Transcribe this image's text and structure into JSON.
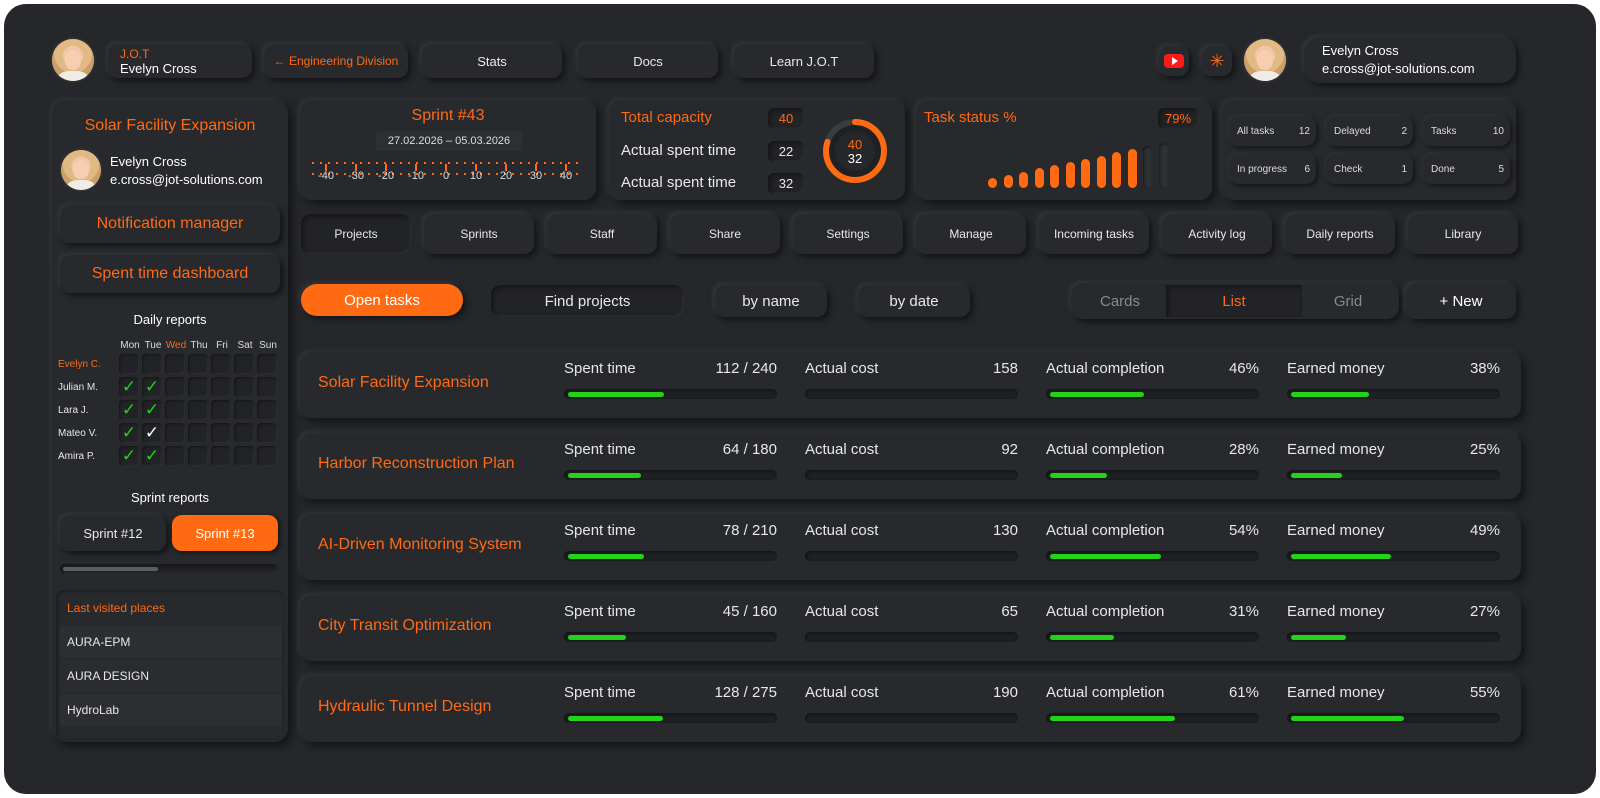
{
  "header": {
    "app_name": "J.O.T",
    "user_name": "Evelyn Cross",
    "back_link": "← Engineering Division",
    "nav": [
      "Stats",
      "Docs",
      "Learn J.O.T"
    ],
    "profile_name": "Evelyn Cross",
    "profile_email": "e.cross@jot-solutions.com",
    "icons": [
      "youtube-icon",
      "sun-icon"
    ]
  },
  "sidebar": {
    "project_title": "Solar Facility Expansion",
    "user_name": "Evelyn Cross",
    "user_email": "e.cross@jot-solutions.com",
    "notification_btn": "Notification manager",
    "dashboard_btn": "Spent time dashboard",
    "daily_reports_title": "Daily reports",
    "days": [
      "Mon",
      "Tue",
      "Wed",
      "Thu",
      "Fri",
      "Sat",
      "Sun"
    ],
    "highlight_day": "Wed",
    "people": [
      "Evelyn C.",
      "Julian M.",
      "Lara J.",
      "Mateo V.",
      "Amira P."
    ],
    "checks": [
      [
        0,
        0,
        0,
        0,
        0,
        0,
        0
      ],
      [
        1,
        1,
        0,
        0,
        0,
        0,
        0
      ],
      [
        1,
        1,
        0,
        0,
        0,
        0,
        0
      ],
      [
        1,
        2,
        0,
        0,
        0,
        0,
        0
      ],
      [
        1,
        1,
        0,
        0,
        0,
        0,
        0
      ]
    ],
    "sprint_reports_title": "Sprint reports",
    "sprint_a": "Sprint #12",
    "sprint_b": "Sprint #13",
    "scroll_progress": 0.45,
    "last_visited_title": "Last visited places",
    "last_visited": [
      "AURA-EPM",
      "AURA DESIGN",
      "HydroLab"
    ]
  },
  "sprint": {
    "title": "Sprint #43",
    "dates": "27.02.2026 – 05.03.2026",
    "scale": [
      "-40",
      "-30",
      "-20",
      "-10",
      "0",
      "10",
      "20",
      "30",
      "40"
    ]
  },
  "capacity": {
    "total_label": "Total capacity",
    "total_value": "40",
    "spent_label_1": "Actual spent time",
    "spent_value_1": "22",
    "spent_label_2": "Actual spent time",
    "spent_value_2": "32",
    "gauge_top": "40",
    "gauge_bottom": "32",
    "gauge_fraction": 0.8
  },
  "task_status": {
    "label": "Task status %",
    "value": "79%",
    "bars_total": 12,
    "bars_active": 10
  },
  "stats": [
    {
      "label": "All tasks",
      "value": "12"
    },
    {
      "label": "Delayed",
      "value": "2"
    },
    {
      "label": "Tasks",
      "value": "10"
    },
    {
      "label": "In progress",
      "value": "6"
    },
    {
      "label": "Check",
      "value": "1"
    },
    {
      "label": "Done",
      "value": "5"
    }
  ],
  "tabs": [
    "Projects",
    "Sprints",
    "Staff",
    "Share",
    "Settings",
    "Manage",
    "Incoming tasks",
    "Activity log",
    "Daily reports",
    "Library"
  ],
  "active_tab": "Projects",
  "toolbar": {
    "open_tasks": "Open tasks",
    "find_projects": "Find projects",
    "by_name": "by name",
    "by_date": "by date",
    "views": [
      "Cards",
      "List",
      "Grid"
    ],
    "active_view": "List",
    "new_btn": "+ New"
  },
  "projects": [
    {
      "name": "Solar Facility Expansion",
      "spent_label": "Spent time",
      "spent": "112 / 240",
      "spent_frac": 0.467,
      "cost_label": "Actual cost",
      "cost": "158",
      "cost_frac": 0.0,
      "completion_label": "Actual completion",
      "completion": "46%",
      "completion_frac": 0.46,
      "earned_label": "Earned money",
      "earned": "38%",
      "earned_frac": 0.38
    },
    {
      "name": "Harbor Reconstruction Plan",
      "spent_label": "Spent time",
      "spent": "64 / 180",
      "spent_frac": 0.356,
      "cost_label": "Actual cost",
      "cost": "92",
      "cost_frac": 0.0,
      "completion_label": "Actual completion",
      "completion": "28%",
      "completion_frac": 0.28,
      "earned_label": "Earned money",
      "earned": "25%",
      "earned_frac": 0.25
    },
    {
      "name": "AI-Driven Monitoring System",
      "spent_label": "Spent time",
      "spent": "78 / 210",
      "spent_frac": 0.371,
      "cost_label": "Actual cost",
      "cost": "130",
      "cost_frac": 0.0,
      "completion_label": "Actual completion",
      "completion": "54%",
      "completion_frac": 0.54,
      "earned_label": "Earned money",
      "earned": "49%",
      "earned_frac": 0.49
    },
    {
      "name": "City Transit Optimization",
      "spent_label": "Spent time",
      "spent": "45 / 160",
      "spent_frac": 0.281,
      "cost_label": "Actual cost",
      "cost": "65",
      "cost_frac": 0.0,
      "completion_label": "Actual completion",
      "completion": "31%",
      "completion_frac": 0.31,
      "earned_label": "Earned money",
      "earned": "27%",
      "earned_frac": 0.27
    },
    {
      "name": "Hydraulic Tunnel Design",
      "spent_label": "Spent time",
      "spent": "128 / 275",
      "spent_frac": 0.465,
      "cost_label": "Actual cost",
      "cost": "190",
      "cost_frac": 0.0,
      "completion_label": "Actual completion",
      "completion": "61%",
      "completion_frac": 0.61,
      "earned_label": "Earned money",
      "earned": "55%",
      "earned_frac": 0.55
    }
  ],
  "colors": {
    "accent": "#ff6a13",
    "progress": "#22d31a",
    "background": "#25272a"
  }
}
